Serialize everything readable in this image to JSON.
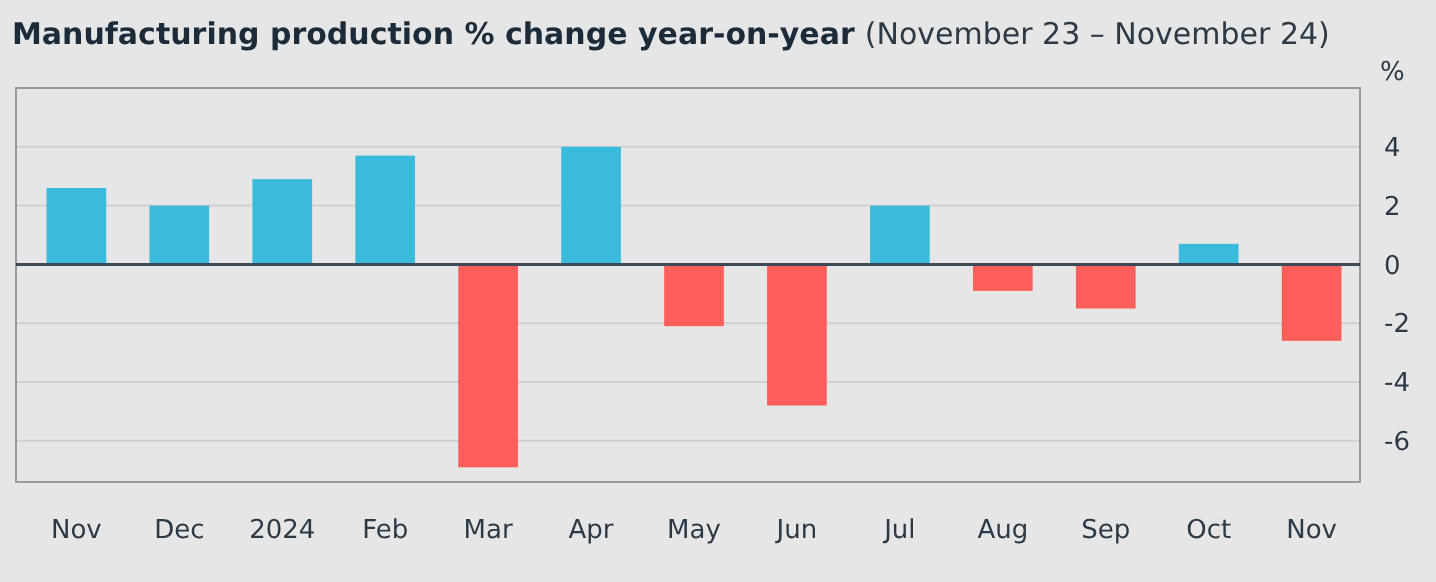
{
  "chart_data": {
    "type": "bar",
    "title": "Manufacturing production % change year-on-year",
    "subtitle": "(November 23 – November 24)",
    "ylabel": "%",
    "categories": [
      "Nov",
      "Dec",
      "2024",
      "Feb",
      "Mar",
      "Apr",
      "May",
      "Jun",
      "Jul",
      "Aug",
      "Sep",
      "Oct",
      "Nov"
    ],
    "values": [
      2.6,
      2.0,
      2.9,
      3.7,
      -6.9,
      4.0,
      -2.1,
      -4.8,
      2.0,
      -0.9,
      -1.5,
      0.7,
      -2.6
    ],
    "colors": [
      "#3bbbdc",
      "#3bbbdc",
      "#3bbbdc",
      "#3bbbdc",
      "#fe5f5a",
      "#3bbbdc",
      "#fe5f5a",
      "#fe5f5a",
      "#3bbbdc",
      "#fe5f5a",
      "#fe5f5a",
      "#3bbbdc",
      "#fe5f5a"
    ],
    "ylim": [
      -7.4,
      6
    ],
    "yticks": [
      -6,
      -4,
      -2,
      0,
      2,
      4
    ],
    "grid": "y"
  }
}
